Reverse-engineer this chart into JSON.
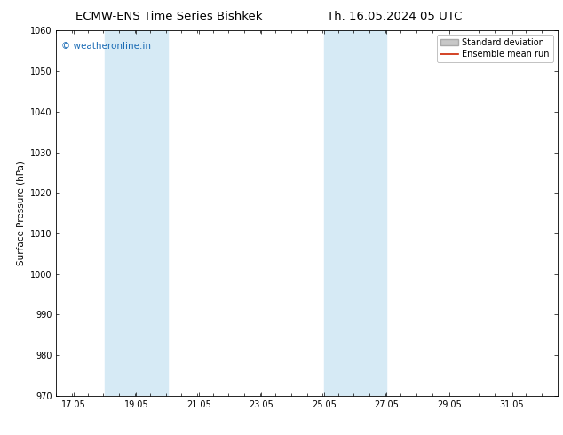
{
  "title_left": "ECMW-ENS Time Series Bishkek",
  "title_right": "Th. 16.05.2024 05 UTC",
  "ylabel": "Surface Pressure (hPa)",
  "ylim": [
    970,
    1060
  ],
  "yticks": [
    970,
    980,
    990,
    1000,
    1010,
    1020,
    1030,
    1040,
    1050,
    1060
  ],
  "xlim_start": 16.5,
  "xlim_end": 32.5,
  "xtick_labels": [
    "17.05",
    "19.05",
    "21.05",
    "23.05",
    "25.05",
    "27.05",
    "29.05",
    "31.05"
  ],
  "xtick_positions": [
    17.05,
    19.05,
    21.05,
    23.05,
    25.05,
    27.05,
    29.05,
    31.05
  ],
  "shaded_regions": [
    {
      "x_start": 18.05,
      "x_end": 20.05
    },
    {
      "x_start": 25.05,
      "x_end": 27.05
    }
  ],
  "shaded_color": "#d6eaf5",
  "watermark_text": "© weatheronline.in",
  "watermark_color": "#1a6bb5",
  "legend_std_dev_color": "#c8c8c8",
  "legend_std_dev_edge": "#aaaaaa",
  "legend_ensemble_color": "#cc2200",
  "background_color": "#ffffff",
  "title_fontsize": 9.5,
  "axis_label_fontsize": 7.5,
  "tick_fontsize": 7,
  "watermark_fontsize": 7.5,
  "legend_fontsize": 7
}
